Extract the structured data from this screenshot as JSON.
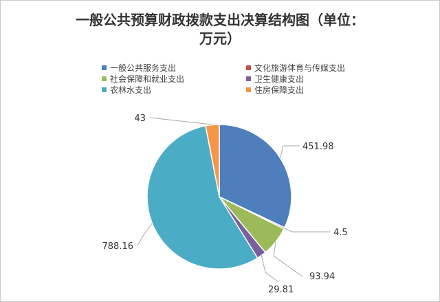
{
  "chart_data": {
    "type": "pie",
    "title": "一般公共预算财政拨款支出决算结构图（单位：万元）",
    "title_line1": "一般公共预算财政拨款支出决算结构图（单位：",
    "title_line2": "万元）",
    "legend_position": "top",
    "slices": [
      {
        "name": "一般公共服务支出",
        "value": 451.98,
        "label": "451.98",
        "color": "#4e7fbc"
      },
      {
        "name": "文化旅游体育与传媒支出",
        "value": 4.5,
        "label": "4.5",
        "color": "#c0504d"
      },
      {
        "name": "社会保障和就业支出",
        "value": 93.94,
        "label": "93.94",
        "color": "#9bbb59"
      },
      {
        "name": "卫生健康支出",
        "value": 29.81,
        "label": "29.81",
        "color": "#7a5fa0"
      },
      {
        "name": "农林水支出",
        "value": 788.16,
        "label": "788.16",
        "color": "#4bacc6"
      },
      {
        "name": "住房保障支出",
        "value": 43,
        "label": "43",
        "color": "#f79646"
      }
    ]
  }
}
